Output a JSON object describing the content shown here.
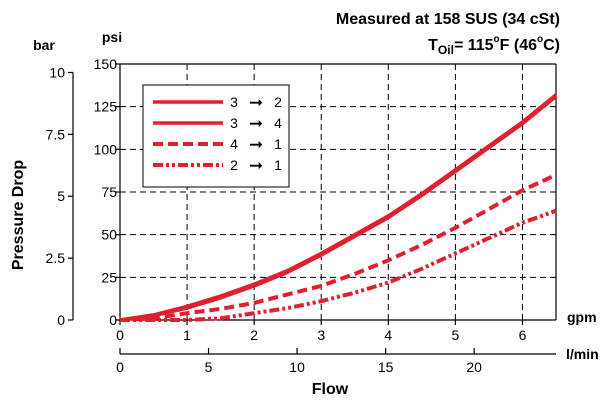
{
  "chart_data": {
    "type": "line",
    "title_line1": "Measured at 158 SUS  (34 cSt)",
    "title_line2_prefix": "T",
    "title_line2_sub": "Oil",
    "title_line2_rest": "= 115",
    "title_deg": "o",
    "title_f_open": "F (46",
    "title_c_close": "C)",
    "xlabel": "Flow",
    "ylabel": "Pressure Drop",
    "x_unit_primary": "gpm",
    "x_unit_secondary": "l/min",
    "y_unit_primary": "psi",
    "y_unit_secondary": "bar",
    "xlim": [
      0,
      6.5
    ],
    "ylim": [
      0,
      150
    ],
    "x_ticks": [
      0,
      1,
      2,
      3,
      4,
      5,
      6
    ],
    "y_ticks": [
      0,
      25,
      50,
      75,
      100,
      125,
      150
    ],
    "x_secondary_ticks": [
      {
        "label": "0",
        "gpm": 0
      },
      {
        "label": "5",
        "gpm": 1.32
      },
      {
        "label": "10",
        "gpm": 2.64
      },
      {
        "label": "15",
        "gpm": 3.96
      },
      {
        "label": "20",
        "gpm": 5.28
      }
    ],
    "y_secondary_ticks": [
      {
        "label": "0",
        "psi": 0
      },
      {
        "label": "2.5",
        "psi": 36.26
      },
      {
        "label": "5",
        "psi": 72.52
      },
      {
        "label": "7.5",
        "psi": 108.78
      },
      {
        "label": "10",
        "psi": 145.04
      }
    ],
    "grid": true,
    "legend_position": "top-left",
    "legend_arrow": "➞",
    "series": [
      {
        "name": "3 ➞ 2",
        "from": "3",
        "to": "2",
        "style": "solid",
        "color": "#e0202e",
        "x": [
          0,
          0.5,
          1,
          1.5,
          2,
          2.5,
          3,
          3.5,
          4,
          4.5,
          5,
          5.5,
          6,
          6.5
        ],
        "y": [
          0,
          3,
          8,
          14,
          21,
          29,
          39,
          50,
          61,
          74,
          88,
          102,
          116,
          132
        ]
      },
      {
        "name": "3 ➞ 4",
        "from": "3",
        "to": "4",
        "style": "solid",
        "color": "#e0202e",
        "x": [
          0,
          0.5,
          1,
          1.5,
          2,
          2.5,
          3,
          3.5,
          4,
          4.5,
          5,
          5.5,
          6,
          6.5
        ],
        "y": [
          0,
          2.5,
          7,
          13,
          20,
          28,
          38,
          49,
          60,
          73,
          87,
          101,
          115,
          131
        ]
      },
      {
        "name": "4 ➞ 1",
        "from": "4",
        "to": "1",
        "style": "dashed",
        "color": "#e0202e",
        "x": [
          0,
          0.5,
          1,
          1.5,
          2,
          2.5,
          3,
          3.5,
          4,
          4.5,
          5,
          5.5,
          6,
          6.5
        ],
        "y": [
          0,
          1,
          4,
          6.5,
          10,
          15,
          20,
          27,
          35,
          44,
          54,
          65,
          76,
          85
        ]
      },
      {
        "name": "2 ➞ 1",
        "from": "2",
        "to": "1",
        "style": "dash-dot-dot",
        "color": "#e0202e",
        "x": [
          0,
          0.5,
          1,
          1.5,
          2,
          2.5,
          3,
          3.5,
          4,
          4.5,
          5,
          5.5,
          6,
          6.5
        ],
        "y": [
          0,
          0,
          0,
          1,
          4,
          7,
          11,
          16,
          22,
          30,
          39,
          48,
          57,
          64
        ]
      }
    ]
  }
}
